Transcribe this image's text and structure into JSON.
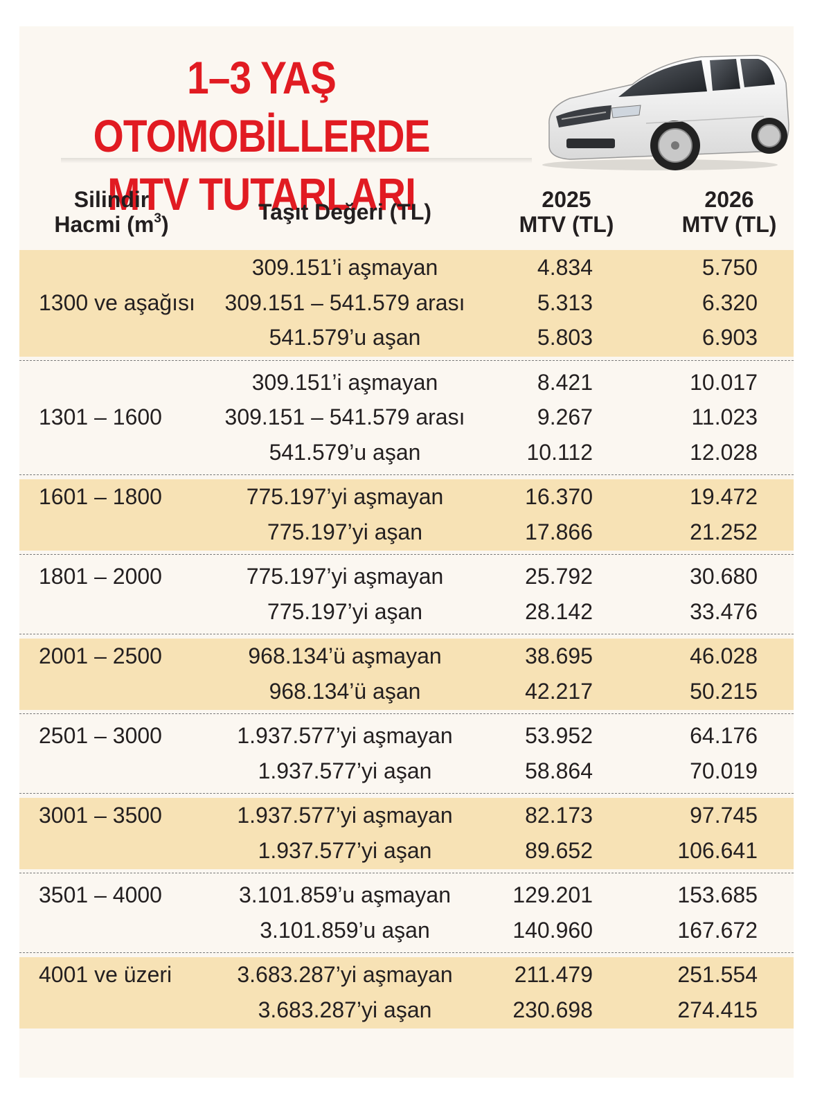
{
  "title": {
    "line1": "1–3 YAŞ OTOMOBİLLERDE",
    "line2": "MTV TUTARLARI"
  },
  "headers": {
    "cylinder_line1": "Silindir",
    "cylinder_line2": "Hacmi (m",
    "cylinder_sup": "3",
    "cylinder_close": ")",
    "value": "Taşıt Değeri (TL)",
    "y2025_line1": "2025",
    "y2025_line2": "MTV (TL)",
    "y2026_line1": "2026",
    "y2026_line2": "MTV (TL)"
  },
  "groups": [
    {
      "cylinder": "1300 ve aşağısı",
      "shaded": true,
      "rows": [
        {
          "value": "309.151’i aşmayan",
          "mtv2025": "4.834",
          "mtv2026": "5.750"
        },
        {
          "value": "309.151 – 541.579 arası",
          "mtv2025": "5.313",
          "mtv2026": "6.320"
        },
        {
          "value": "541.579’u aşan",
          "mtv2025": "5.803",
          "mtv2026": "6.903"
        }
      ]
    },
    {
      "cylinder": "1301 – 1600",
      "shaded": false,
      "rows": [
        {
          "value": "309.151’i aşmayan",
          "mtv2025": "8.421",
          "mtv2026": "10.017"
        },
        {
          "value": "309.151 – 541.579 arası",
          "mtv2025": "9.267",
          "mtv2026": "11.023"
        },
        {
          "value": "541.579’u aşan",
          "mtv2025": "10.112",
          "mtv2026": "12.028"
        }
      ]
    },
    {
      "cylinder": "1601 – 1800",
      "shaded": true,
      "rows": [
        {
          "value": "775.197’yi aşmayan",
          "mtv2025": "16.370",
          "mtv2026": "19.472"
        },
        {
          "value": "775.197’yi aşan",
          "mtv2025": "17.866",
          "mtv2026": "21.252"
        }
      ]
    },
    {
      "cylinder": "1801 – 2000",
      "shaded": false,
      "rows": [
        {
          "value": "775.197’yi aşmayan",
          "mtv2025": "25.792",
          "mtv2026": "30.680"
        },
        {
          "value": "775.197’yi aşan",
          "mtv2025": "28.142",
          "mtv2026": "33.476"
        }
      ]
    },
    {
      "cylinder": "2001 – 2500",
      "shaded": true,
      "rows": [
        {
          "value": "968.134’ü aşmayan",
          "mtv2025": "38.695",
          "mtv2026": "46.028"
        },
        {
          "value": "968.134’ü aşan",
          "mtv2025": "42.217",
          "mtv2026": "50.215"
        }
      ]
    },
    {
      "cylinder": "2501 – 3000",
      "shaded": false,
      "rows": [
        {
          "value": "1.937.577’yi aşmayan",
          "mtv2025": "53.952",
          "mtv2026": "64.176"
        },
        {
          "value": "1.937.577’yi aşan",
          "mtv2025": "58.864",
          "mtv2026": "70.019"
        }
      ]
    },
    {
      "cylinder": "3001 – 3500",
      "shaded": true,
      "rows": [
        {
          "value": "1.937.577’yi aşmayan",
          "mtv2025": "82.173",
          "mtv2026": "97.745"
        },
        {
          "value": "1.937.577’yi aşan",
          "mtv2025": "89.652",
          "mtv2026": "106.641"
        }
      ]
    },
    {
      "cylinder": "3501 – 4000",
      "shaded": false,
      "rows": [
        {
          "value": "3.101.859’u aşmayan",
          "mtv2025": "129.201",
          "mtv2026": "153.685"
        },
        {
          "value": "3.101.859’u aşan",
          "mtv2025": "140.960",
          "mtv2026": "167.672"
        }
      ]
    },
    {
      "cylinder": "4001 ve üzeri",
      "shaded": true,
      "rows": [
        {
          "value": "3.683.287’yi aşmayan",
          "mtv2025": "211.479",
          "mtv2026": "251.554"
        },
        {
          "value": "3.683.287’yi aşan",
          "mtv2025": "230.698",
          "mtv2026": "274.415"
        }
      ]
    }
  ],
  "colors": {
    "title": "#e11b22",
    "shade": "#f7e2b5",
    "background": "#fbf7f1"
  },
  "illustration": "white-station-wagon-car"
}
